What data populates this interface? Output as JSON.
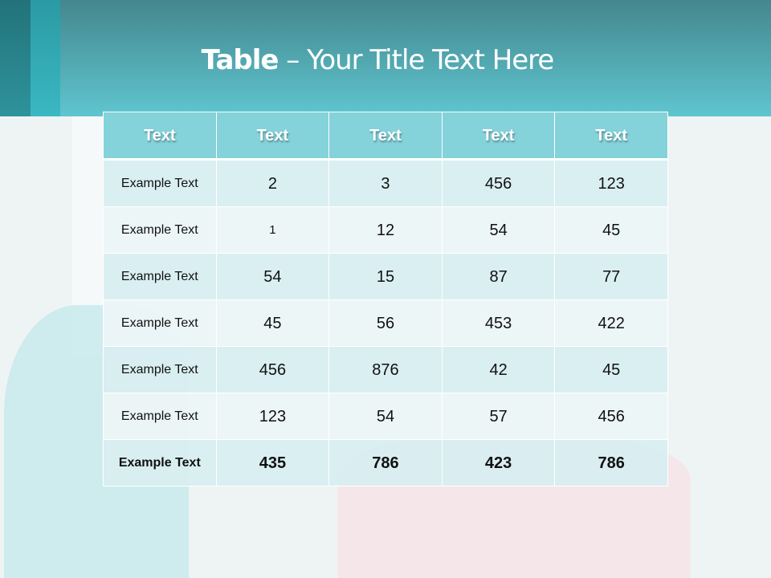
{
  "title": {
    "bold": "Table",
    "rest": " – Your Title Text Here"
  },
  "colors": {
    "header_band": "#5fc5d0",
    "table_header": "#84d2da",
    "row_odd": "#d8eef1",
    "row_even": "#ecf6f7"
  },
  "table": {
    "headers": [
      "Text",
      "Text",
      "Text",
      "Text",
      "Text"
    ],
    "rows": [
      [
        "Example Text",
        "2",
        "3",
        "456",
        "123"
      ],
      [
        "Example Text",
        "1",
        "12",
        "54",
        "45"
      ],
      [
        "Example Text",
        "54",
        "15",
        "87",
        "77"
      ],
      [
        "Example Text",
        "45",
        "56",
        "453",
        "422"
      ],
      [
        "Example Text",
        "456",
        "876",
        "42",
        "45"
      ],
      [
        "Example Text",
        "123",
        "54",
        "57",
        "456"
      ],
      [
        "Example Text",
        "435",
        "786",
        "423",
        "786"
      ]
    ],
    "bold_last_row": true
  }
}
